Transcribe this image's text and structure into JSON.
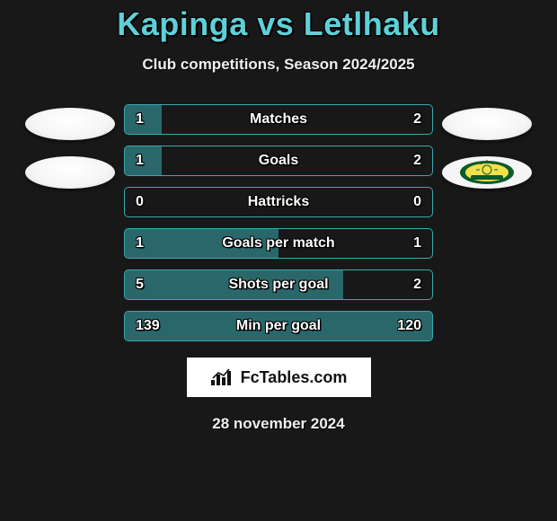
{
  "header": {
    "title": "Kapinga vs Letlhaku",
    "subtitle": "Club competitions, Season 2024/2025",
    "title_color": "#5fd0d8"
  },
  "badges": {
    "left_count": 2,
    "right_count": 2,
    "right_second_is_sundowns": true
  },
  "stats": {
    "bar_border_color": "#3aa9b0",
    "bar_fill_color": "#3aa9b0",
    "rows": [
      {
        "label": "Matches",
        "left": "1",
        "right": "2",
        "left_pct": 12,
        "right_pct": 0
      },
      {
        "label": "Goals",
        "left": "1",
        "right": "2",
        "left_pct": 12,
        "right_pct": 0
      },
      {
        "label": "Hattricks",
        "left": "0",
        "right": "0",
        "left_pct": 0,
        "right_pct": 0
      },
      {
        "label": "Goals per match",
        "left": "1",
        "right": "1",
        "left_pct": 50,
        "right_pct": 0
      },
      {
        "label": "Shots per goal",
        "left": "5",
        "right": "2",
        "left_pct": 71,
        "right_pct": 0
      },
      {
        "label": "Min per goal",
        "left": "139",
        "right": "120",
        "left_pct": 0,
        "right_pct": 100
      }
    ]
  },
  "footer": {
    "brand": "FcTables.com",
    "date": "28 november 2024"
  },
  "colors": {
    "background": "#181818",
    "text": "#f0f0f0"
  }
}
